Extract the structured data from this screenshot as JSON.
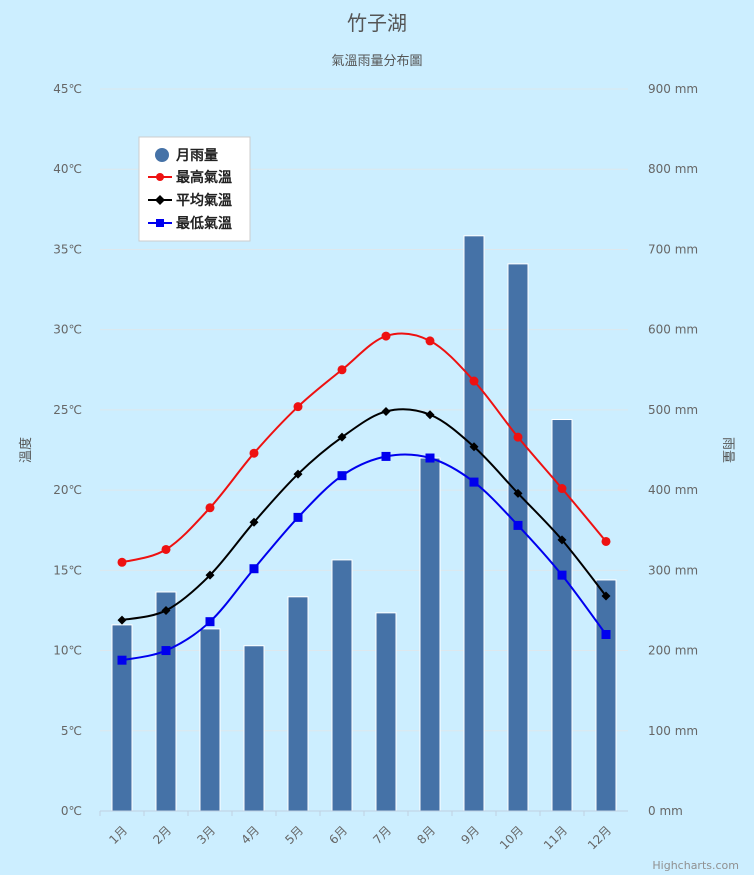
{
  "chart_data": {
    "type": "bar",
    "title": "竹子湖",
    "subtitle": "氣溫雨量分布圖",
    "categories": [
      "1月",
      "2月",
      "3月",
      "4月",
      "5月",
      "6月",
      "7月",
      "8月",
      "9月",
      "10月",
      "11月",
      "12月"
    ],
    "left_axis": {
      "title": "溫度",
      "range": [
        0,
        45
      ],
      "ticks": [
        0,
        5,
        10,
        15,
        20,
        25,
        30,
        35,
        40,
        45
      ],
      "tick_labels": [
        "0℃",
        "5℃",
        "10℃",
        "15℃",
        "20℃",
        "25℃",
        "30℃",
        "35℃",
        "40℃",
        "45℃"
      ]
    },
    "right_axis": {
      "title": "雨量",
      "range": [
        0,
        900
      ],
      "ticks": [
        0,
        100,
        200,
        300,
        400,
        500,
        600,
        700,
        800,
        900
      ],
      "tick_labels": [
        "0 mm",
        "100 mm",
        "200 mm",
        "300 mm",
        "400 mm",
        "500 mm",
        "600 mm",
        "700 mm",
        "800 mm",
        "900 mm"
      ]
    },
    "grid": true,
    "legend_position": "top-left",
    "series": [
      {
        "name": "月雨量",
        "type": "column",
        "axis": "right",
        "color": "#4572a7",
        "values": [
          232,
          273,
          227,
          206,
          267,
          313,
          247,
          440,
          717,
          682,
          488,
          288
        ]
      },
      {
        "name": "最高氣溫",
        "type": "spline",
        "axis": "left",
        "color": "#ee1111",
        "marker": "circle",
        "values": [
          15.5,
          16.3,
          18.9,
          22.3,
          25.2,
          27.5,
          29.6,
          29.3,
          26.8,
          23.3,
          20.1,
          16.8
        ]
      },
      {
        "name": "平均氣溫",
        "type": "spline",
        "axis": "left",
        "color": "#000000",
        "marker": "diamond",
        "values": [
          11.9,
          12.5,
          14.7,
          18.0,
          21.0,
          23.3,
          24.9,
          24.7,
          22.7,
          19.8,
          16.9,
          13.4
        ]
      },
      {
        "name": "最低氣溫",
        "type": "spline",
        "axis": "left",
        "color": "#0000ee",
        "marker": "square",
        "values": [
          9.4,
          10.0,
          11.8,
          15.1,
          18.3,
          20.9,
          22.1,
          22.0,
          20.5,
          17.8,
          14.7,
          11.0
        ]
      }
    ]
  },
  "credits": "Highcharts.com"
}
